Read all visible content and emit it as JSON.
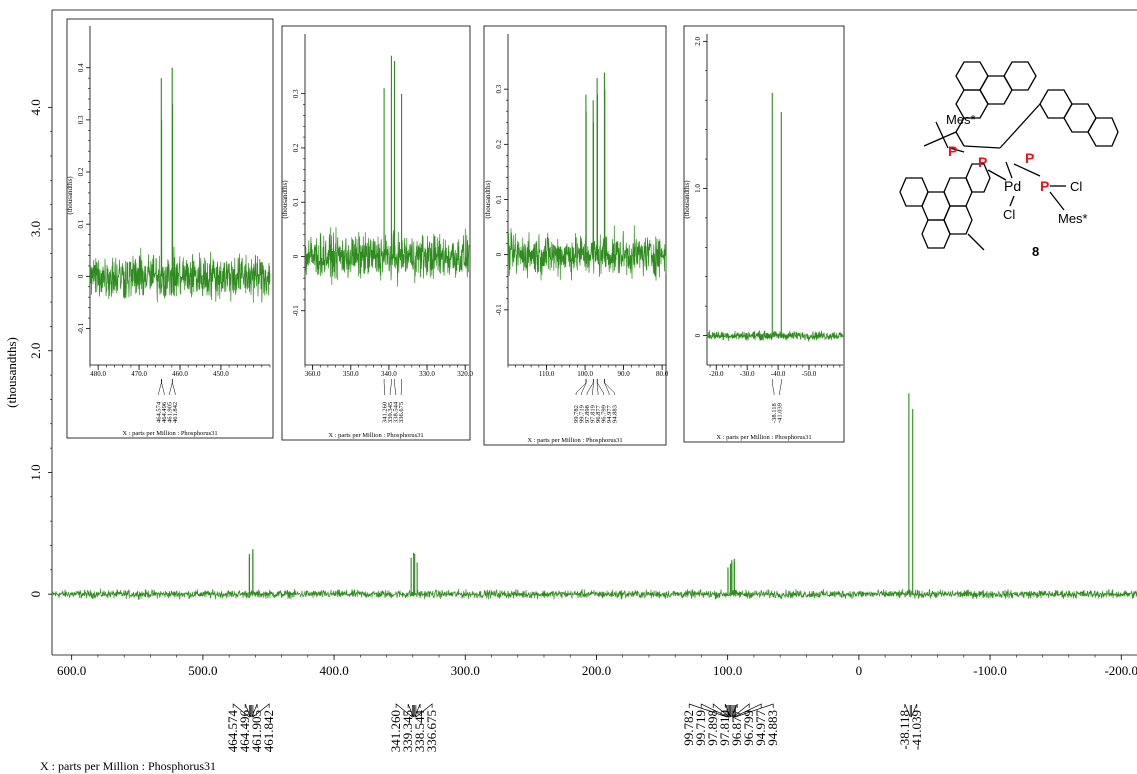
{
  "chart_data": [
    {
      "type": "line",
      "panel": "main",
      "xlabel": "X : parts per Million : Phosphorus31",
      "ylabel": "(thousandths)",
      "xlim": [
        615.0,
        -212.0
      ],
      "ylim": [
        -0.5,
        4.8
      ],
      "x_ticks": [
        "600.0",
        "500.0",
        "400.0",
        "300.0",
        "200.0",
        "100.0",
        "0",
        "-100.0",
        "-200.0"
      ],
      "x_tick_values": [
        600,
        500,
        400,
        300,
        200,
        100,
        0,
        -100,
        -200
      ],
      "y_ticks": [
        "0",
        "1.0",
        "2.0",
        "3.0",
        "4.0"
      ],
      "y_tick_values": [
        0,
        1,
        2,
        3,
        4
      ],
      "noise_amplitude": 0.05,
      "peaks": [
        {
          "x": 464.574,
          "y": 0.33
        },
        {
          "x": 464.496,
          "y": 0.3
        },
        {
          "x": 461.905,
          "y": 0.37
        },
        {
          "x": 461.842,
          "y": 0.34
        },
        {
          "x": 341.26,
          "y": 0.3
        },
        {
          "x": 339.345,
          "y": 0.34
        },
        {
          "x": 338.544,
          "y": 0.33
        },
        {
          "x": 336.675,
          "y": 0.26
        },
        {
          "x": 99.782,
          "y": 0.22
        },
        {
          "x": 99.719,
          "y": 0.2
        },
        {
          "x": 97.898,
          "y": 0.25
        },
        {
          "x": 97.819,
          "y": 0.23
        },
        {
          "x": 96.877,
          "y": 0.28
        },
        {
          "x": 96.799,
          "y": 0.26
        },
        {
          "x": 94.977,
          "y": 0.29
        },
        {
          "x": 94.883,
          "y": 0.27
        },
        {
          "x": -38.118,
          "y": 1.65
        },
        {
          "x": -41.039,
          "y": 1.52
        }
      ],
      "peak_label_groups": [
        [
          "464.574",
          "464.496",
          "461.905",
          "461.842"
        ],
        [
          "341.260",
          "339.345",
          "338.544",
          "336.675"
        ],
        [
          "99.782",
          "99.719",
          "97.898",
          "97.819",
          "96.877",
          "96.799",
          "94.977",
          "94.883"
        ],
        [
          "-38.118",
          "-41.039"
        ]
      ]
    },
    {
      "type": "line",
      "panel": "inset-1",
      "xlabel": "X : parts per Million : Phosphorus31",
      "ylabel": "(thousandths)",
      "xlim": [
        482.0,
        438.0
      ],
      "ylim": [
        -0.17,
        0.48
      ],
      "x_ticks": [
        "480.0",
        "470.0",
        "460.0",
        "450.0"
      ],
      "x_tick_values": [
        480,
        470,
        460,
        450
      ],
      "y_ticks": [
        "-0.1",
        "0",
        "0.1",
        "0.2",
        "0.3",
        "0.4"
      ],
      "y_tick_values": [
        -0.1,
        0,
        0.1,
        0.2,
        0.3,
        0.4
      ],
      "noise_amplitude": 0.065,
      "peaks": [
        {
          "x": 464.574,
          "y": 0.38
        },
        {
          "x": 464.496,
          "y": 0.3
        },
        {
          "x": 461.905,
          "y": 0.4
        },
        {
          "x": 461.842,
          "y": 0.33
        }
      ],
      "peak_labels": [
        "464.574",
        "464.496",
        "461.905",
        "461.842"
      ]
    },
    {
      "type": "line",
      "panel": "inset-2",
      "xlabel": "X : parts per Million : Phosphorus31",
      "ylabel": "(thousandths)",
      "xlim": [
        362.0,
        319.0
      ],
      "ylim": [
        -0.2,
        0.41
      ],
      "x_ticks": [
        "360.0",
        "350.0",
        "340.0",
        "330.0",
        "320.0"
      ],
      "x_tick_values": [
        360,
        350,
        340,
        330,
        320
      ],
      "y_ticks": [
        "-0.1",
        "0",
        "0.1",
        "0.2",
        "0.3"
      ],
      "y_tick_values": [
        -0.1,
        0,
        0.1,
        0.2,
        0.3
      ],
      "noise_amplitude": 0.06,
      "peaks": [
        {
          "x": 341.26,
          "y": 0.31
        },
        {
          "x": 339.345,
          "y": 0.37
        },
        {
          "x": 338.544,
          "y": 0.36
        },
        {
          "x": 336.675,
          "y": 0.3
        }
      ],
      "peak_labels": [
        "341.260",
        "339.345",
        "338.544",
        "336.675"
      ]
    },
    {
      "type": "line",
      "panel": "inset-3",
      "xlabel": "X : parts per Million : Phosphorus31",
      "ylabel": "(thousandths)",
      "xlim": [
        120.0,
        79.0
      ],
      "ylim": [
        -0.2,
        0.4
      ],
      "x_ticks": [
        "110.0",
        "100.0",
        "90.0",
        "80.0"
      ],
      "x_tick_values": [
        110,
        100,
        90,
        80
      ],
      "y_ticks": [
        "-0.1",
        "0",
        "0.1",
        "0.2",
        "0.3"
      ],
      "y_tick_values": [
        -0.1,
        0,
        0.1,
        0.2,
        0.3
      ],
      "noise_amplitude": 0.055,
      "peaks": [
        {
          "x": 99.782,
          "y": 0.29
        },
        {
          "x": 99.719,
          "y": 0.26
        },
        {
          "x": 97.898,
          "y": 0.28
        },
        {
          "x": 97.819,
          "y": 0.24
        },
        {
          "x": 96.877,
          "y": 0.32
        },
        {
          "x": 96.799,
          "y": 0.29
        },
        {
          "x": 94.977,
          "y": 0.33
        },
        {
          "x": 94.883,
          "y": 0.3
        }
      ],
      "peak_labels": [
        "99.782",
        "99.719",
        "97.898",
        "97.819",
        "96.877",
        "96.799",
        "94.977",
        "94.883"
      ]
    },
    {
      "type": "line",
      "panel": "inset-4",
      "xlabel": "X : parts per Million : Phosphorus31",
      "ylabel": "(thousandths)",
      "xlim": [
        -17.0,
        -61.0
      ],
      "ylim": [
        -0.2,
        2.05
      ],
      "x_ticks": [
        "-20.0",
        "-30.0",
        "-40.0",
        "-50.0"
      ],
      "x_tick_values": [
        -20,
        -30,
        -40,
        -50
      ],
      "y_ticks": [
        "0",
        "1.0",
        "2.0"
      ],
      "y_tick_values": [
        0,
        1,
        2
      ],
      "noise_amplitude": 0.045,
      "peaks": [
        {
          "x": -38.118,
          "y": 1.65
        },
        {
          "x": -41.039,
          "y": 1.52
        }
      ],
      "peak_labels": [
        "-38.118",
        "-41.039"
      ]
    }
  ],
  "molecule": {
    "compound_number": "8",
    "labels": {
      "mes_top": "Mes*",
      "mes_bottom": "Mes*",
      "p1": "P",
      "p2": "P",
      "p3": "P",
      "p4": "P",
      "pd": "Pd",
      "cl1": "Cl",
      "cl2": "Cl"
    }
  },
  "colors": {
    "spectrum": "#2e8b1e",
    "phosphorus": "#e8141c",
    "axis": "#000000"
  }
}
